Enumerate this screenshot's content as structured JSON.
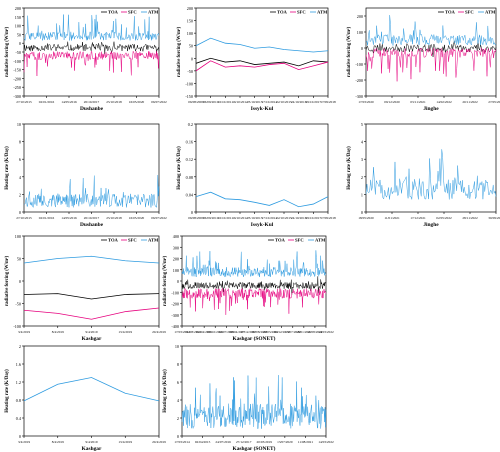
{
  "chart_data": [
    {
      "id": "p1",
      "type": "line",
      "variant": "dense",
      "seed": 11,
      "n": 220,
      "xlabel": "Dushanbe",
      "ylabel": "radiative forcing (W/m²)",
      "ylim": [
        -300,
        200
      ],
      "yticks": [
        200,
        150,
        100,
        50,
        0,
        -50,
        -100,
        -150,
        -200,
        -250,
        -300
      ],
      "xticks": [
        "27/10/2015",
        "02/01/2016",
        "14/05/2016",
        "20/10/2017",
        "25/10/2018",
        "16/05/2020",
        "06/07/2022"
      ],
      "legend": [
        "TOA",
        "SFC",
        "ATM"
      ],
      "series": [
        {
          "name": "TOA",
          "color": "#000000",
          "base": -25,
          "amp": 20,
          "spike": 25,
          "spikeDir": 0
        },
        {
          "name": "SFC",
          "color": "#e6007e",
          "base": -70,
          "amp": 25,
          "spike": 110,
          "spikeDir": -1
        },
        {
          "name": "ATM",
          "color": "#2e9be0",
          "base": 40,
          "amp": 25,
          "spike": 120,
          "spikeDir": 1
        }
      ]
    },
    {
      "id": "p2",
      "type": "line",
      "variant": "points",
      "xlabel": "Issyk-Kul",
      "ylabel": "radiative forcing (W/m²)",
      "ylim": [
        -150,
        200
      ],
      "yticks": [
        200,
        150,
        100,
        50,
        0,
        -50,
        -100,
        -150
      ],
      "xticks": [
        "06/08/2009",
        "06/09/2010",
        "16/10/2011",
        "16/10/2012",
        "23/10/2013",
        "17/10/2014",
        "22/10/2015",
        "24/10/2016",
        "29/10/2017",
        "17/09/2018"
      ],
      "legend": [
        "TOA",
        "SFC",
        "ATM"
      ],
      "series": [
        {
          "name": "TOA",
          "color": "#000000",
          "values": [
            -20,
            0,
            -15,
            -10,
            -25,
            -20,
            -15,
            -30,
            -10,
            -15
          ]
        },
        {
          "name": "SFC",
          "color": "#e6007e",
          "values": [
            -50,
            -10,
            -35,
            -30,
            -35,
            -25,
            -20,
            -45,
            -30,
            -15
          ]
        },
        {
          "name": "ATM",
          "color": "#2e9be0",
          "values": [
            50,
            80,
            60,
            55,
            40,
            45,
            35,
            30,
            25,
            30
          ]
        }
      ]
    },
    {
      "id": "p3",
      "type": "line",
      "variant": "dense",
      "seed": 23,
      "n": 160,
      "xlabel": "Jinghe",
      "ylabel": "radiative forcing (W/m²)",
      "ylim": [
        -300,
        250
      ],
      "yticks": [
        200,
        100,
        0,
        -100,
        -200,
        -300
      ],
      "xticks": [
        "17/03/2020",
        "09/12/2020",
        "03/11/2021",
        "14/02/2022",
        "20/11/2022",
        "27/05/2023"
      ],
      "legend": [
        "TOA",
        "SFC",
        "ATM"
      ],
      "series": [
        {
          "name": "TOA",
          "color": "#000000",
          "base": 0,
          "amp": 25,
          "spike": 40,
          "spikeDir": 0
        },
        {
          "name": "SFC",
          "color": "#e6007e",
          "base": -30,
          "amp": 30,
          "spike": 180,
          "spikeDir": -1
        },
        {
          "name": "ATM",
          "color": "#2e9be0",
          "base": 50,
          "amp": 35,
          "spike": 130,
          "spikeDir": 1
        }
      ]
    },
    {
      "id": "p4",
      "type": "line",
      "variant": "dense",
      "seed": 37,
      "n": 220,
      "xlabel": "Dushanbe",
      "ylabel": "Heating rate (K/Day)",
      "ylim": [
        0,
        10
      ],
      "yticks": [
        0,
        2,
        4,
        6,
        8,
        10
      ],
      "xticks": [
        "27/10/2015",
        "02/01/2016",
        "14/05/2016",
        "20/10/2017",
        "25/10/2018",
        "16/05/2020",
        "06/07/2022"
      ],
      "series": [
        {
          "name": "",
          "color": "#2e9be0",
          "base": 1.3,
          "amp": 0.8,
          "spike": 3.0,
          "spikeDir": 1,
          "min": 0.1
        }
      ]
    },
    {
      "id": "p5",
      "type": "line",
      "variant": "points",
      "xlabel": "Issyk-Kul",
      "ylabel": "Heating rate (K/Day)",
      "ylim": [
        0.0,
        0.2
      ],
      "yticks": [
        0.0,
        0.04,
        0.08,
        0.12,
        0.16,
        0.2
      ],
      "xticks": [
        "06/08/2009",
        "06/09/2010",
        "16/10/2011",
        "16/10/2012",
        "23/10/2013",
        "17/10/2014",
        "22/10/2015",
        "24/10/2016",
        "29/10/2017",
        "17/09/2018"
      ],
      "series": [
        {
          "name": "",
          "color": "#2e9be0",
          "values": [
            0.035,
            0.045,
            0.03,
            0.028,
            0.022,
            0.015,
            0.028,
            0.012,
            0.018,
            0.035
          ]
        }
      ]
    },
    {
      "id": "p6",
      "type": "line",
      "variant": "dense",
      "seed": 51,
      "n": 140,
      "xlabel": "Jinghe",
      "ylabel": "Heating rate (K/Day)",
      "ylim": [
        0,
        5
      ],
      "yticks": [
        0,
        1,
        2,
        3,
        4,
        5
      ],
      "xticks": [
        "18/05/2020",
        "11/01/2021",
        "17/12/2021",
        "02/05/2022",
        "28/11/2022",
        "30/09/2023"
      ],
      "series": [
        {
          "name": "",
          "color": "#2e9be0",
          "base": 1.3,
          "amp": 0.6,
          "spike": 2.0,
          "spikeDir": 1,
          "min": 0.2
        }
      ]
    },
    {
      "id": "p7",
      "type": "line",
      "variant": "points",
      "xlabel": "Kashgar",
      "ylabel": "radiative forcing (W/m²)",
      "ylim": [
        -100,
        100
      ],
      "yticks": [
        100,
        50,
        0,
        -50,
        -100
      ],
      "xticks": [
        "3/4/2019",
        "8/4/2019",
        "9/4/2019",
        "13/4/2019",
        "20/4/2019"
      ],
      "legend": [
        "TOA",
        "SFC",
        "ATM"
      ],
      "series": [
        {
          "name": "TOA",
          "color": "#000000",
          "values": [
            -30,
            -28,
            -40,
            -30,
            -28
          ]
        },
        {
          "name": "SFC",
          "color": "#e6007e",
          "values": [
            -65,
            -72,
            -85,
            -68,
            -60
          ]
        },
        {
          "name": "ATM",
          "color": "#2e9be0",
          "values": [
            40,
            50,
            55,
            45,
            40
          ]
        }
      ]
    },
    {
      "id": "p8",
      "type": "line",
      "variant": "dense",
      "seed": 67,
      "n": 300,
      "xlabel": "Kashgar (SONET)",
      "ylabel": "radiative forcing (W/m²)",
      "ylim": [
        -400,
        400
      ],
      "yticks": [
        400,
        300,
        200,
        100,
        0,
        -100,
        -200,
        -300,
        -400
      ],
      "xticks": [
        "17/03/2014",
        "31/08/2014",
        "02/04/2015",
        "09/10/2015",
        "24/07/2016",
        "08/04/2017",
        "27/12/2017",
        "09/08/2018",
        "20/03/2019",
        "02/12/2019",
        "13/07/2020",
        "18/01/2021",
        "11/08/2021",
        "14/03/2022"
      ],
      "legend": [
        "TOA",
        "SFC",
        "ATM"
      ],
      "series": [
        {
          "name": "TOA",
          "color": "#000000",
          "base": -40,
          "amp": 30,
          "spike": 60,
          "spikeDir": 0
        },
        {
          "name": "SFC",
          "color": "#e6007e",
          "base": -110,
          "amp": 45,
          "spike": 170,
          "spikeDir": -1
        },
        {
          "name": "ATM",
          "color": "#2e9be0",
          "base": 80,
          "amp": 45,
          "spike": 180,
          "spikeDir": 1
        }
      ]
    },
    {
      "id": "p9",
      "type": "line",
      "variant": "points",
      "xlabel": "Kashgar",
      "ylabel": "Heating rate (K/Day)",
      "ylim": [
        0.0,
        2.0
      ],
      "yticks": [
        0.0,
        0.4,
        0.8,
        1.2,
        1.6,
        2.0
      ],
      "xticks": [
        "3/4/2019",
        "8/4/2019",
        "9/4/2019",
        "13/4/2019",
        "20/4/2019"
      ],
      "series": [
        {
          "name": "",
          "color": "#2e9be0",
          "values": [
            0.78,
            1.15,
            1.3,
            0.95,
            0.78
          ]
        }
      ]
    },
    {
      "id": "p10",
      "type": "line",
      "variant": "dense",
      "seed": 83,
      "n": 300,
      "xlabel": "Kashgar (SONET)",
      "ylabel": "Heating rate (K/Day)",
      "ylim": [
        0,
        10
      ],
      "yticks": [
        0,
        2,
        4,
        6,
        8,
        10
      ],
      "xticks": [
        "17/03/2014",
        "02/04/2015",
        "24/07/2016",
        "27/12/2017",
        "20/03/2019",
        "13/07/2020",
        "11/08/2021",
        "14/03/2022"
      ],
      "series": [
        {
          "name": "",
          "color": "#2e9be0",
          "base": 2.2,
          "amp": 1.4,
          "spike": 4.0,
          "spikeDir": 1,
          "min": 0.1
        }
      ]
    }
  ]
}
